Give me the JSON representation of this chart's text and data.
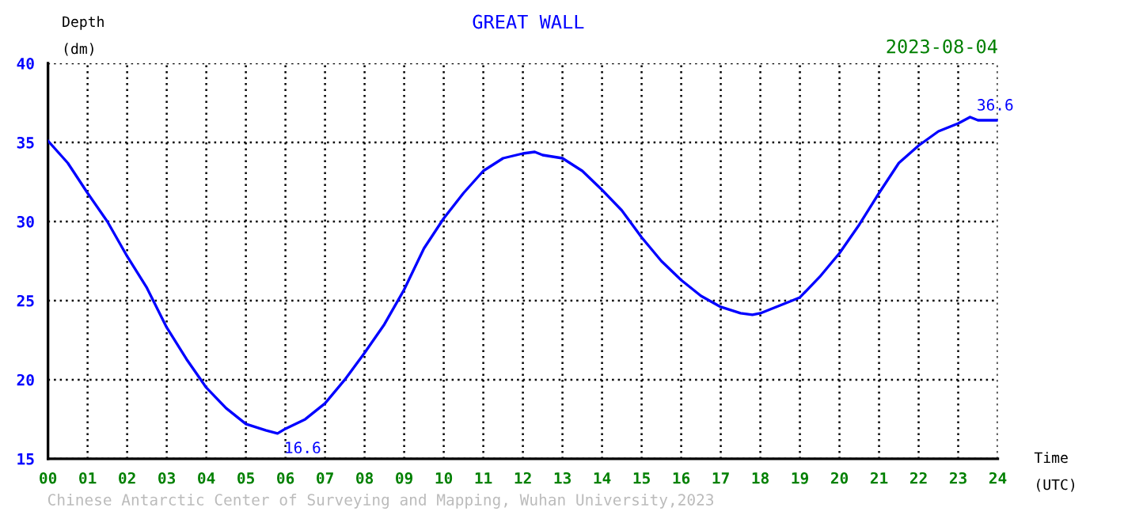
{
  "chart_data": {
    "type": "line",
    "title": "GREAT WALL",
    "xlabel": "Time\n(UTC)",
    "ylabel": "Depth\n(dm)",
    "annotations": [
      "2023-08-04",
      "Chinese Antarctic Center of Surveying and Mapping, Wuhan University,2023",
      {
        "text": "16.6",
        "x": 5.8,
        "y": 16.6
      },
      {
        "text": "36.6",
        "x": 23.3,
        "y": 36.6
      }
    ],
    "x": [
      0,
      0.5,
      1,
      1.5,
      2,
      2.5,
      3,
      3.5,
      4,
      4.5,
      5,
      5.5,
      5.8,
      6,
      6.5,
      7,
      7.5,
      8,
      8.5,
      9,
      9.5,
      10,
      10.5,
      11,
      11.5,
      12,
      12.3,
      12.5,
      13,
      13.5,
      14,
      14.5,
      15,
      15.5,
      16,
      16.5,
      17,
      17.5,
      17.8,
      18,
      18.5,
      19,
      19.5,
      20,
      20.5,
      21,
      21.5,
      22,
      22.5,
      23,
      23.3,
      23.5,
      24
    ],
    "series": [
      {
        "color": "#0000ff",
        "values": [
          35.1,
          33.7,
          31.8,
          30.0,
          27.8,
          25.8,
          23.3,
          21.3,
          19.5,
          18.2,
          17.2,
          16.8,
          16.6,
          16.9,
          17.5,
          18.5,
          20.0,
          21.7,
          23.5,
          25.7,
          28.3,
          30.2,
          31.8,
          33.2,
          34.0,
          34.3,
          34.4,
          34.2,
          34.0,
          33.2,
          32.0,
          30.7,
          29.0,
          27.5,
          26.3,
          25.3,
          24.6,
          24.2,
          24.1,
          24.2,
          24.7,
          25.2,
          26.5,
          28.0,
          29.8,
          31.8,
          33.7,
          34.8,
          35.7,
          36.2,
          36.6,
          36.4,
          36.4
        ]
      }
    ],
    "xlim": [
      0,
      24
    ],
    "ylim": [
      15,
      40
    ],
    "xticks": [
      {
        "value": 0,
        "label": "00"
      },
      {
        "value": 1,
        "label": "01"
      },
      {
        "value": 2,
        "label": "02"
      },
      {
        "value": 3,
        "label": "03"
      },
      {
        "value": 4,
        "label": "04"
      },
      {
        "value": 5,
        "label": "05"
      },
      {
        "value": 6,
        "label": "06"
      },
      {
        "value": 7,
        "label": "07"
      },
      {
        "value": 8,
        "label": "08"
      },
      {
        "value": 9,
        "label": "09"
      },
      {
        "value": 10,
        "label": "10"
      },
      {
        "value": 11,
        "label": "11"
      },
      {
        "value": 12,
        "label": "12"
      },
      {
        "value": 13,
        "label": "13"
      },
      {
        "value": 14,
        "label": "14"
      },
      {
        "value": 15,
        "label": "15"
      },
      {
        "value": 16,
        "label": "16"
      },
      {
        "value": 17,
        "label": "17"
      },
      {
        "value": 18,
        "label": "18"
      },
      {
        "value": 19,
        "label": "19"
      },
      {
        "value": 20,
        "label": "20"
      },
      {
        "value": 21,
        "label": "21"
      },
      {
        "value": 22,
        "label": "22"
      },
      {
        "value": 23,
        "label": "23"
      },
      {
        "value": 24,
        "label": "24"
      }
    ],
    "yticks": [
      15,
      20,
      25,
      30,
      35,
      40
    ],
    "grid": true,
    "line_style": "solid",
    "marker": "none"
  }
}
